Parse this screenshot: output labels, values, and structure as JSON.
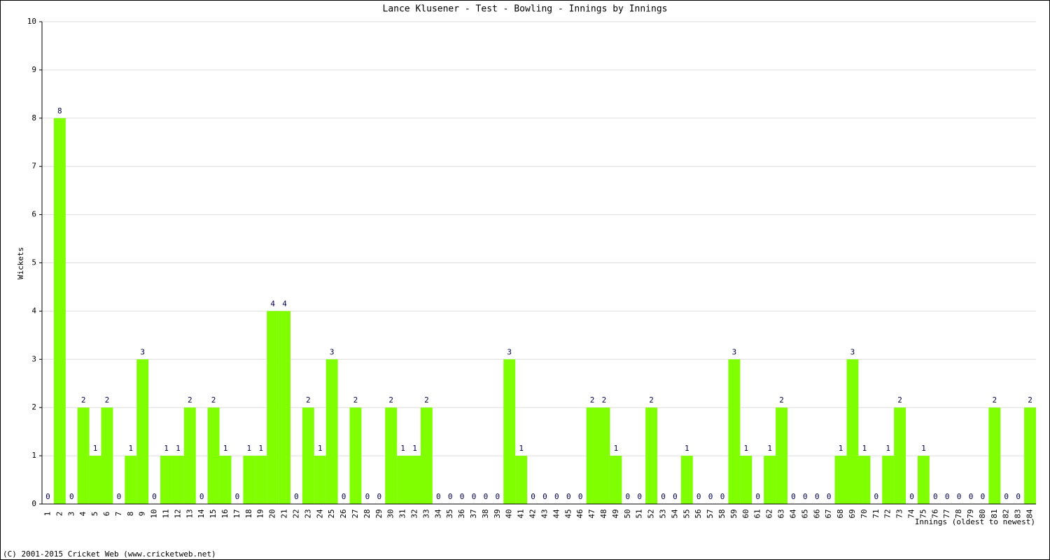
{
  "chart_data": {
    "type": "bar",
    "title": "Lance Klusener - Test - Bowling - Innings by Innings",
    "y_label": "Wickets",
    "x_label": "Innings (oldest to newest)",
    "footer": "(C) 2001-2015 Cricket Web (www.cricketweb.net)",
    "color": "#7fff00",
    "grid": true,
    "categories": [
      "1",
      "2",
      "3",
      "4",
      "5",
      "6",
      "7",
      "8",
      "9",
      "10",
      "11",
      "12",
      "13",
      "14",
      "15",
      "16",
      "17",
      "18",
      "19",
      "20",
      "21",
      "22",
      "23",
      "24",
      "25",
      "26",
      "27",
      "28",
      "29",
      "30",
      "31",
      "32",
      "33",
      "34",
      "35",
      "36",
      "37",
      "38",
      "39",
      "40",
      "41",
      "42",
      "43",
      "44",
      "45",
      "46",
      "47",
      "48",
      "49",
      "50",
      "51",
      "52",
      "53",
      "54",
      "55",
      "56",
      "57",
      "58",
      "59",
      "60",
      "61",
      "62",
      "63",
      "64",
      "65",
      "66",
      "67",
      "68",
      "69",
      "70",
      "71",
      "72",
      "73",
      "74",
      "75",
      "76",
      "77",
      "78",
      "79",
      "80",
      "81",
      "82",
      "83",
      "84"
    ],
    "values": [
      0,
      8,
      0,
      2,
      1,
      2,
      0,
      1,
      3,
      0,
      1,
      1,
      2,
      0,
      2,
      1,
      0,
      1,
      1,
      4,
      4,
      0,
      2,
      1,
      3,
      0,
      2,
      0,
      0,
      2,
      1,
      1,
      2,
      0,
      0,
      0,
      0,
      0,
      0,
      3,
      1,
      0,
      0,
      0,
      0,
      0,
      2,
      2,
      1,
      0,
      0,
      2,
      0,
      0,
      1,
      0,
      0,
      0,
      3,
      1,
      0,
      1,
      2,
      0,
      0,
      0,
      0,
      1,
      3,
      1,
      0,
      1,
      2,
      0,
      1,
      0,
      0,
      0,
      0,
      0,
      2,
      0,
      0,
      2
    ],
    "ylim": [
      0,
      10
    ],
    "yticks": [
      0,
      1,
      2,
      3,
      4,
      5,
      6,
      7,
      8,
      9,
      10
    ]
  }
}
